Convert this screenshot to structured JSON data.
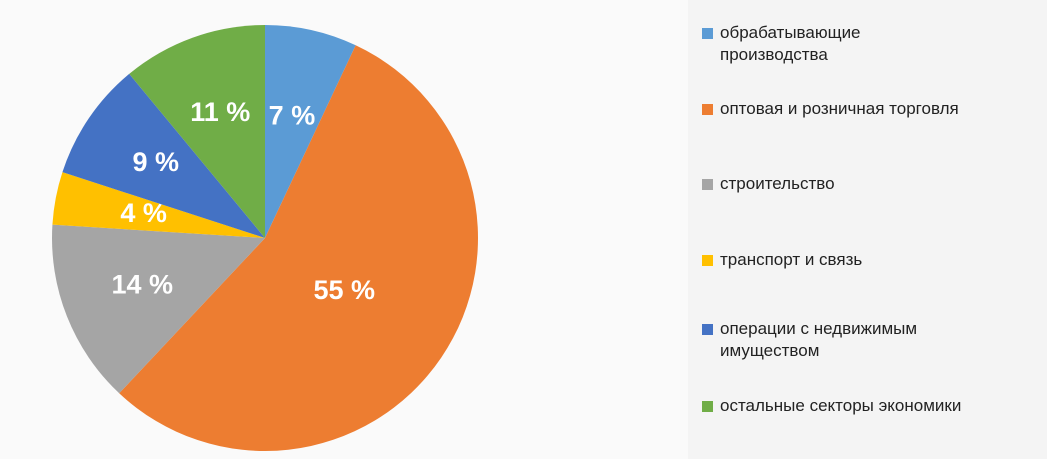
{
  "chart_data": {
    "type": "pie",
    "categories": [
      "обрабатывающие производства",
      "оптовая и розничная торговля",
      "строительство",
      "транспорт и связь",
      "операции с недвижимым имуществом",
      "остальные секторы экономики"
    ],
    "values": [
      7,
      55,
      14,
      4,
      9,
      11
    ],
    "value_labels": [
      "7 %",
      "55 %",
      "14 %",
      "4 %",
      "9 %",
      "11 %"
    ],
    "colors": [
      "#5b9bd5",
      "#ed7d31",
      "#a5a5a5",
      "#ffc000",
      "#4472c4",
      "#70ad47"
    ],
    "legend": "right"
  }
}
